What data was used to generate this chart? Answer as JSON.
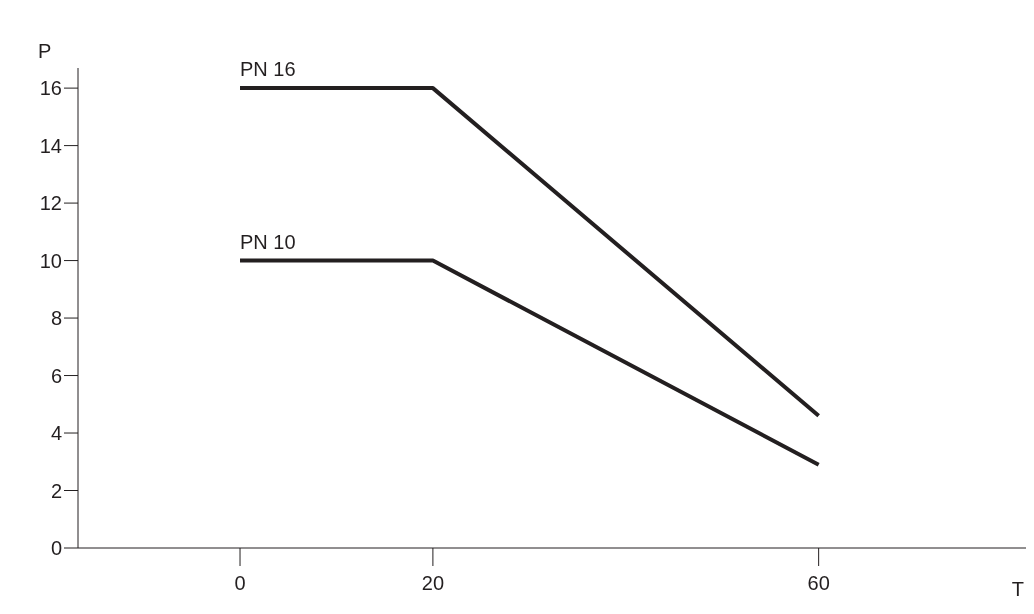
{
  "chart_data": {
    "type": "line",
    "xlabel": "T",
    "ylabel": "P",
    "x": [
      0,
      20,
      60
    ],
    "series": [
      {
        "name": "PN 16",
        "color": "#231f20",
        "values": [
          16,
          16,
          4.6
        ]
      },
      {
        "name": "PN 10",
        "color": "#231f20",
        "values": [
          10,
          10,
          2.9
        ]
      }
    ],
    "xlim": [
      -16.8,
      81.5
    ],
    "ylim": [
      0,
      16.7
    ],
    "xticks": [
      0,
      20,
      60
    ],
    "yticks": [
      0,
      2,
      4,
      6,
      8,
      10,
      12,
      14,
      16
    ],
    "grid": false,
    "legend": false,
    "marker": "none",
    "line_style": "solid"
  }
}
